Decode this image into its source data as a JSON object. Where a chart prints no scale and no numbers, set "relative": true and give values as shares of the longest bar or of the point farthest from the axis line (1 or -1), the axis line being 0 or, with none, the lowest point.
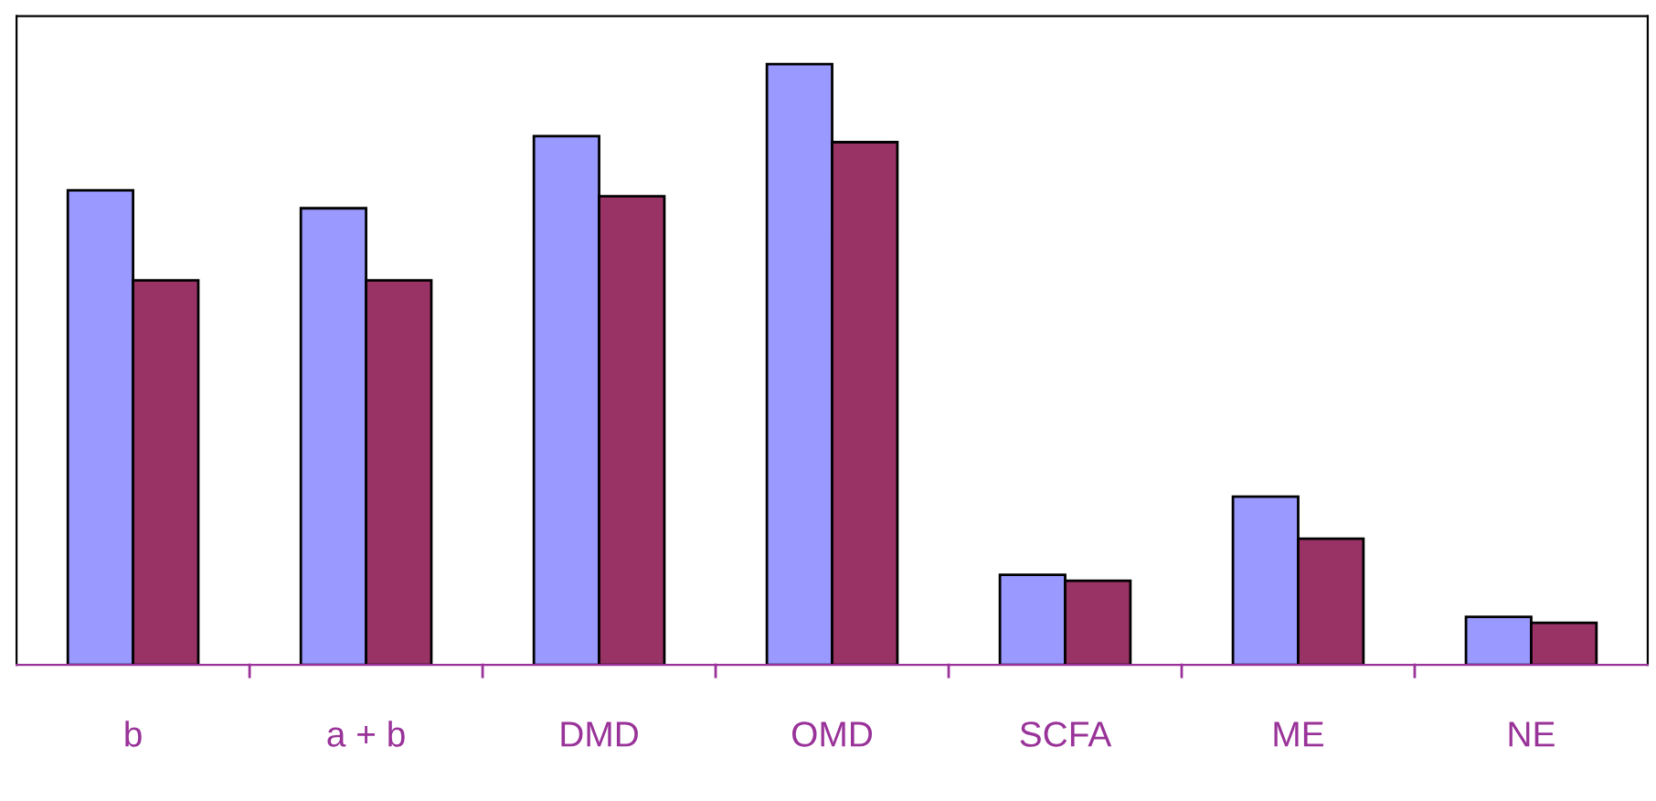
{
  "chart_data": {
    "type": "bar",
    "relative": true,
    "categories": [
      "b",
      "a + b",
      "DMD",
      "OMD",
      "SCFA",
      "ME",
      "NE"
    ],
    "series": [
      {
        "color": "#9999ff",
        "values": [
          0.79,
          0.76,
          0.88,
          1,
          0.15,
          0.28,
          0.08
        ]
      },
      {
        "color": "#993366",
        "values": [
          0.64,
          0.64,
          0.78,
          0.87,
          0.14,
          0.21,
          0.07
        ]
      }
    ],
    "grid": false
  }
}
